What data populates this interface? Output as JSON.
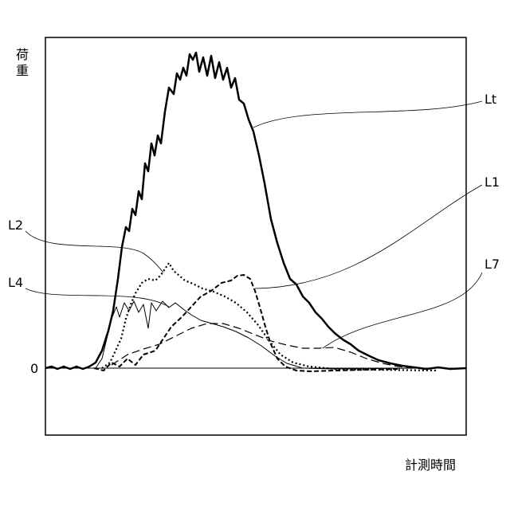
{
  "axes": {
    "y_label_1": "荷",
    "y_label_2": "重",
    "x_label": "計測時間",
    "zero_label": "0"
  },
  "curves": [
    {
      "label": "Lt"
    },
    {
      "label": "L1"
    },
    {
      "label": "L2"
    },
    {
      "label": "L4"
    },
    {
      "label": "L7"
    }
  ]
}
